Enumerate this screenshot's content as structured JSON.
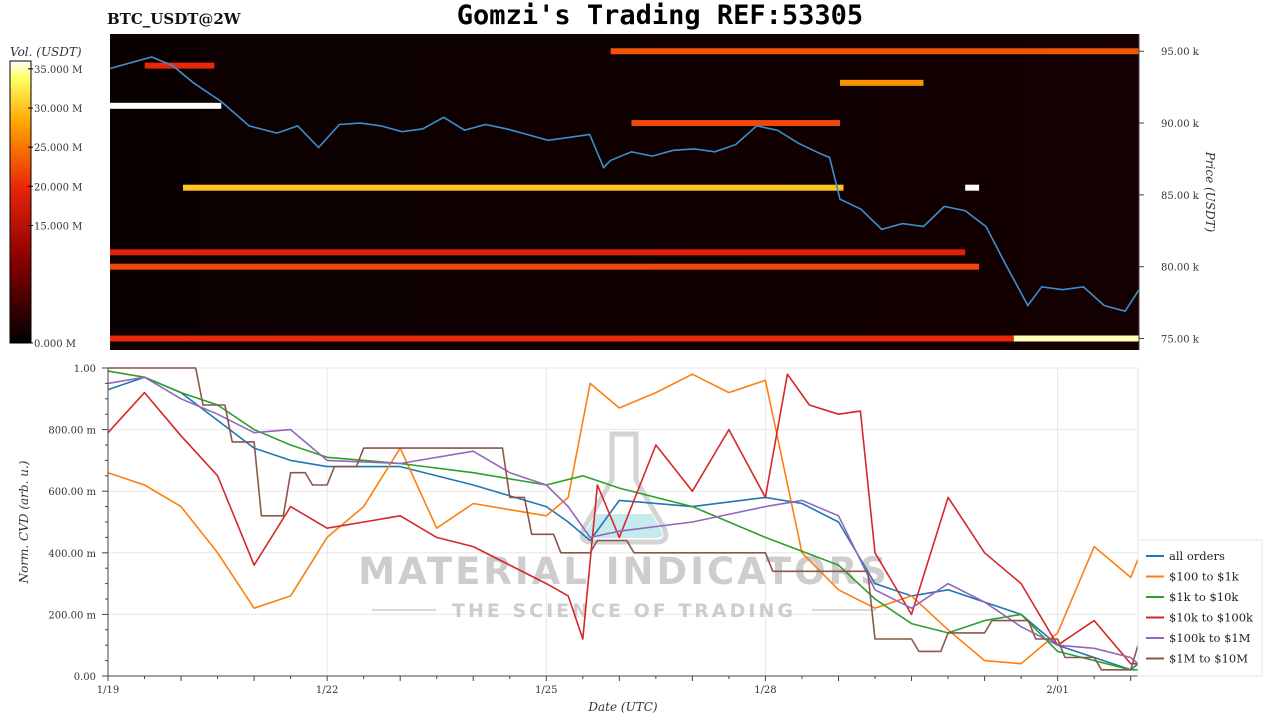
{
  "header": {
    "symbol": "BTC_USDT@2W",
    "title": "Gomzi's Trading REF:53305"
  },
  "watermark": {
    "line1": "MATERIAL INDICATORS",
    "line2": "THE SCIENCE OF TRADING"
  },
  "colorbar": {
    "label": "Vol. (USDT)",
    "ticks": [
      "35.000 M",
      "30.000 M",
      "25.000 M",
      "20.000 M",
      "15.000 M",
      "0.000 M"
    ],
    "tick_values": [
      35,
      30,
      25,
      20,
      15,
      0
    ],
    "range": [
      0,
      36
    ],
    "colors": [
      "#000000",
      "#8b0000",
      "#e8250a",
      "#ffa500",
      "#ffff66",
      "#ffffff"
    ]
  },
  "chart_data": [
    {
      "type": "heatmap",
      "title": "Gomzi's Trading REF:53305",
      "subtitle": "BTC_USDT@2W",
      "ylabel": "Price (USDT)",
      "y_ticks": [
        "95.00 k",
        "90.00 k",
        "85.00 k",
        "80.00 k",
        "75.00 k"
      ],
      "y_tick_values": [
        95000,
        90000,
        85000,
        80000,
        75000
      ],
      "ylim": [
        74200,
        96200
      ],
      "xlim": [
        0,
        14.8
      ],
      "grid": false,
      "price_line": {
        "color": "#3b8fd0",
        "x": [
          0,
          0.3,
          0.6,
          0.9,
          1.2,
          1.6,
          2.0,
          2.4,
          2.7,
          3.0,
          3.3,
          3.6,
          3.9,
          4.2,
          4.5,
          4.8,
          5.1,
          5.4,
          5.7,
          6.0,
          6.3,
          6.6,
          6.9,
          7.1,
          7.2,
          7.5,
          7.8,
          8.1,
          8.4,
          8.7,
          9.0,
          9.3,
          9.6,
          9.9,
          10.2,
          10.35,
          10.5,
          10.8,
          11.1,
          11.4,
          11.7,
          12.0,
          12.3,
          12.6,
          12.9,
          13.2,
          13.4,
          13.7,
          14.0,
          14.3,
          14.6,
          14.8
        ],
        "y": [
          93800,
          94200,
          94600,
          94000,
          92800,
          91500,
          89800,
          89300,
          89800,
          88300,
          89900,
          90000,
          89800,
          89400,
          89600,
          90400,
          89500,
          89900,
          89600,
          89200,
          88800,
          89000,
          89200,
          86900,
          87400,
          88000,
          87700,
          88100,
          88200,
          88000,
          88500,
          89800,
          89500,
          88600,
          87900,
          87600,
          84700,
          84000,
          82600,
          83000,
          82800,
          84200,
          83900,
          82800,
          80000,
          77300,
          78600,
          78400,
          78600,
          77300,
          76900,
          78400
        ]
      },
      "bands": [
        {
          "price": 95000,
          "x0": 7.2,
          "x1": 14.8,
          "vol": 23
        },
        {
          "price": 94000,
          "x0": 0.5,
          "x1": 1.5,
          "vol": 20
        },
        {
          "price": 92800,
          "x0": 10.5,
          "x1": 11.7,
          "vol": 27
        },
        {
          "price": 91200,
          "x0": 0,
          "x1": 1.6,
          "vol": 36
        },
        {
          "price": 90000,
          "x0": 7.5,
          "x1": 10.5,
          "vol": 22
        },
        {
          "price": 85500,
          "x0": 1.05,
          "x1": 10.55,
          "vol": 30
        },
        {
          "price": 85500,
          "x0": 12.3,
          "x1": 12.5,
          "vol": 36
        },
        {
          "price": 81000,
          "x0": 0,
          "x1": 12.3,
          "vol": 19
        },
        {
          "price": 80000,
          "x0": 0,
          "x1": 12.5,
          "vol": 22
        },
        {
          "price": 75000,
          "x0": 0,
          "x1": 14.8,
          "vol": 20
        },
        {
          "price": 75000,
          "x0": 13.0,
          "x1": 14.8,
          "vol": 35
        }
      ]
    },
    {
      "type": "line",
      "xlabel": "Date (UTC)",
      "ylabel": "Norm. CVD (arb. u.)",
      "x_ticks": [
        "1/19",
        "1/22",
        "1/25",
        "1/28",
        "2/01"
      ],
      "x_tick_values": [
        0,
        3,
        6,
        9,
        13
      ],
      "y_ticks": [
        "1.00",
        "800.00 m",
        "600.00 m",
        "400.00 m",
        "200.00 m",
        "0.00"
      ],
      "y_tick_values": [
        1.0,
        0.8,
        0.6,
        0.4,
        0.2,
        0.0
      ],
      "xlim": [
        0,
        14.1
      ],
      "ylim": [
        0,
        1
      ],
      "grid": true,
      "legend_position": "bottom-right",
      "series": [
        {
          "name": "all orders",
          "color": "#1f77b4",
          "x": [
            0,
            0.5,
            1,
            1.5,
            2,
            2.5,
            3,
            4,
            5,
            6,
            6.3,
            6.6,
            7,
            8,
            9,
            9.5,
            10,
            10.5,
            11,
            11.5,
            12,
            12.5,
            13,
            13.5,
            14,
            14.1
          ],
          "y": [
            0.93,
            0.97,
            0.92,
            0.83,
            0.74,
            0.7,
            0.68,
            0.68,
            0.62,
            0.55,
            0.5,
            0.44,
            0.57,
            0.55,
            0.58,
            0.56,
            0.5,
            0.3,
            0.26,
            0.28,
            0.24,
            0.2,
            0.1,
            0.06,
            0.02,
            0.04
          ]
        },
        {
          "name": "$100 to $1k",
          "color": "#ff7f0e",
          "x": [
            0,
            0.5,
            1,
            1.5,
            2,
            2.5,
            3,
            3.5,
            4,
            4.5,
            5,
            5.5,
            6,
            6.3,
            6.6,
            7,
            7.5,
            8,
            8.5,
            9,
            9.5,
            10,
            10.5,
            11,
            11.5,
            12,
            12.5,
            13,
            13.5,
            14,
            14.1
          ],
          "y": [
            0.66,
            0.62,
            0.55,
            0.4,
            0.22,
            0.26,
            0.45,
            0.55,
            0.74,
            0.48,
            0.56,
            0.54,
            0.52,
            0.58,
            0.95,
            0.87,
            0.92,
            0.98,
            0.92,
            0.96,
            0.4,
            0.28,
            0.22,
            0.26,
            0.15,
            0.05,
            0.04,
            0.14,
            0.42,
            0.32,
            0.38
          ]
        },
        {
          "name": "$1k to $10k",
          "color": "#2ca02c",
          "x": [
            0,
            0.5,
            1,
            1.5,
            2,
            2.5,
            3,
            4,
            5,
            6,
            6.5,
            7,
            8,
            9,
            10,
            10.5,
            11,
            11.5,
            12,
            12.5,
            13,
            13.5,
            14,
            14.1
          ],
          "y": [
            0.99,
            0.97,
            0.92,
            0.88,
            0.8,
            0.75,
            0.71,
            0.69,
            0.66,
            0.62,
            0.65,
            0.61,
            0.55,
            0.45,
            0.36,
            0.25,
            0.17,
            0.14,
            0.18,
            0.2,
            0.08,
            0.05,
            0.02,
            0.02
          ]
        },
        {
          "name": "$10k to $100k",
          "color": "#d62728",
          "x": [
            0,
            0.5,
            1,
            1.5,
            2,
            2.5,
            3,
            3.5,
            4,
            4.5,
            5,
            5.5,
            6,
            6.3,
            6.5,
            6.7,
            7,
            7.5,
            8,
            8.5,
            9,
            9.3,
            9.6,
            10,
            10.3,
            10.5,
            11,
            11.5,
            12,
            12.5,
            13,
            13.5,
            14,
            14.1
          ],
          "y": [
            0.79,
            0.92,
            0.78,
            0.65,
            0.36,
            0.55,
            0.48,
            0.5,
            0.52,
            0.45,
            0.42,
            0.36,
            0.3,
            0.26,
            0.12,
            0.62,
            0.45,
            0.75,
            0.6,
            0.8,
            0.58,
            0.98,
            0.88,
            0.85,
            0.86,
            0.4,
            0.2,
            0.58,
            0.4,
            0.3,
            0.1,
            0.18,
            0.04,
            0.04
          ]
        },
        {
          "name": "$100k to $1M",
          "color": "#9467bd",
          "x": [
            0,
            0.5,
            1,
            1.5,
            2,
            2.5,
            3,
            4,
            5,
            5.5,
            6,
            6.3,
            6.6,
            7,
            8,
            9,
            9.5,
            10,
            10.5,
            11,
            11.5,
            12,
            12.5,
            13,
            13.5,
            14,
            14.1
          ],
          "y": [
            0.95,
            0.97,
            0.9,
            0.85,
            0.79,
            0.8,
            0.7,
            0.69,
            0.73,
            0.66,
            0.62,
            0.55,
            0.45,
            0.47,
            0.5,
            0.55,
            0.57,
            0.52,
            0.28,
            0.22,
            0.3,
            0.24,
            0.16,
            0.1,
            0.09,
            0.06,
            0.04
          ]
        },
        {
          "name": "$1M to $10M",
          "color": "#8c564b",
          "x": [
            0,
            0.8,
            1.2,
            1.3,
            1.6,
            1.7,
            2.0,
            2.1,
            2.4,
            2.5,
            2.7,
            2.8,
            3.0,
            3.1,
            3.4,
            3.5,
            5.4,
            5.5,
            5.7,
            5.8,
            6.1,
            6.2,
            6.6,
            6.7,
            7.1,
            7.2,
            9.0,
            9.1,
            10.4,
            10.5,
            11.0,
            11.1,
            11.4,
            11.5,
            12.0,
            12.1,
            12.6,
            12.7,
            13.0,
            13.1,
            13.5,
            13.6,
            14.0,
            14.1
          ],
          "y": [
            1.0,
            1.0,
            1.0,
            0.88,
            0.88,
            0.76,
            0.76,
            0.52,
            0.52,
            0.66,
            0.66,
            0.62,
            0.62,
            0.68,
            0.68,
            0.74,
            0.74,
            0.58,
            0.58,
            0.46,
            0.46,
            0.4,
            0.4,
            0.44,
            0.44,
            0.4,
            0.4,
            0.34,
            0.34,
            0.12,
            0.12,
            0.08,
            0.08,
            0.14,
            0.14,
            0.18,
            0.18,
            0.12,
            0.12,
            0.06,
            0.06,
            0.02,
            0.02,
            0.1
          ]
        }
      ]
    }
  ]
}
